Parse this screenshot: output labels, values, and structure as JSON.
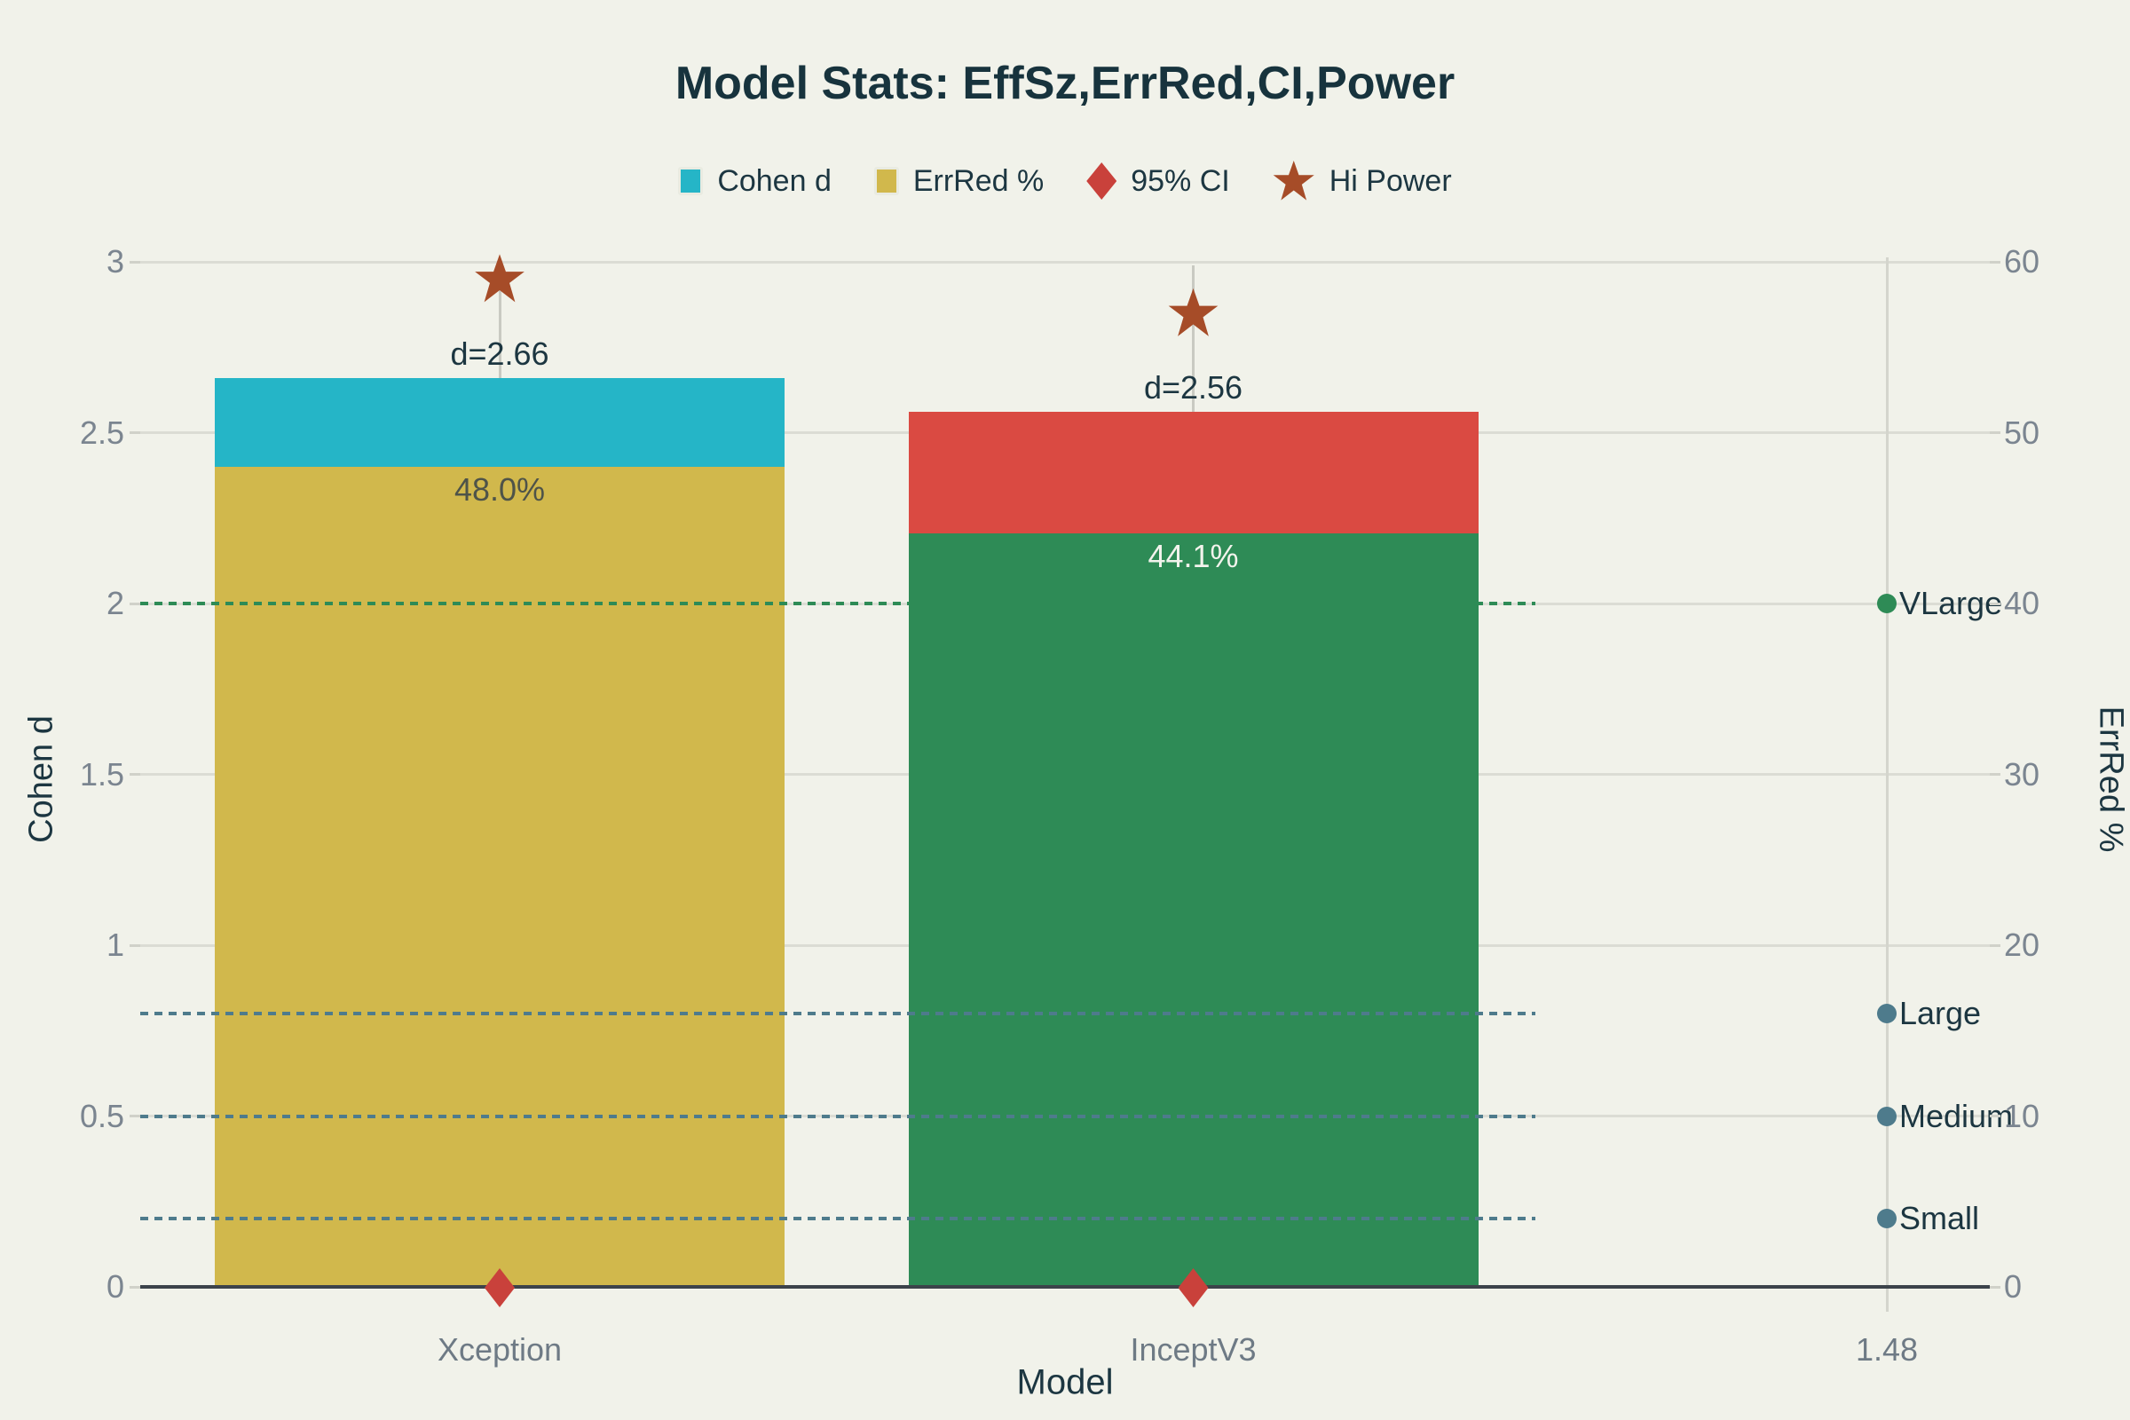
{
  "title": "Model Stats: EffSz,ErrRed,CI,Power",
  "legend": [
    {
      "label": "Cohen d",
      "marker": "square",
      "color": "#25b5c7"
    },
    {
      "label": "ErrRed %",
      "marker": "square",
      "color": "#d1b84c"
    },
    {
      "label": "95% CI",
      "marker": "diamond",
      "color": "#c9413b"
    },
    {
      "label": "Hi Power",
      "marker": "star",
      "color": "#a64c28"
    }
  ],
  "axes": {
    "left": {
      "title": "Cohen d",
      "ticks": [
        {
          "v": 0,
          "label": "0"
        },
        {
          "v": 0.5,
          "label": "0.5"
        },
        {
          "v": 1,
          "label": "1"
        },
        {
          "v": 1.5,
          "label": "1.5"
        },
        {
          "v": 2,
          "label": "2"
        },
        {
          "v": 2.5,
          "label": "2.5"
        },
        {
          "v": 3,
          "label": "3"
        }
      ],
      "range": [
        0,
        3
      ]
    },
    "right": {
      "title": "ErrRed %",
      "ticks": [
        {
          "v": 0,
          "label": "0"
        },
        {
          "v": 10,
          "label": "10"
        },
        {
          "v": 20,
          "label": "20"
        },
        {
          "v": 30,
          "label": "30"
        },
        {
          "v": 40,
          "label": "40"
        },
        {
          "v": 50,
          "label": "50"
        },
        {
          "v": 60,
          "label": "60"
        }
      ],
      "range": [
        0,
        60
      ]
    },
    "x": {
      "title": "Model",
      "categories": [
        "Xception",
        "InceptV3",
        "1.48"
      ]
    }
  },
  "chart_data": {
    "type": "bar",
    "categories": [
      "Xception",
      "InceptV3",
      "1.48"
    ],
    "series": [
      {
        "name": "Cohen d",
        "type": "bar",
        "yaxis": "left",
        "values": [
          2.66,
          2.56,
          null
        ],
        "colors": [
          "#25b5c7",
          "#da4a42"
        ],
        "labels": [
          "d=2.66",
          "d=2.56"
        ],
        "label_color": "#1c3641"
      },
      {
        "name": "ErrRed %",
        "type": "bar-overlay",
        "yaxis": "right",
        "values": [
          48.0,
          44.1,
          null
        ],
        "colors": [
          "#d1b84c",
          "#2e8b56"
        ],
        "labels": [
          "48.0%",
          "44.1%"
        ],
        "label_colors": [
          "#4e5349",
          "#f2f3ec"
        ]
      },
      {
        "name": "95% CI",
        "type": "scatter-diamond",
        "yaxis": "left",
        "values": [
          0,
          0,
          null
        ],
        "color": "#c9413b"
      },
      {
        "name": "Hi Power",
        "type": "scatter-star",
        "yaxis": "left",
        "values": [
          2.95,
          2.85,
          null
        ],
        "color": "#a64c28",
        "whisker_top": 2.99
      }
    ],
    "thresholds": [
      {
        "label": "VLarge",
        "value": 2.0,
        "color": "#2e8b56"
      },
      {
        "label": "Large",
        "value": 0.8,
        "color": "#4e7b8c"
      },
      {
        "label": "Medium",
        "value": 0.5,
        "color": "#4e7b8c"
      },
      {
        "label": "Small",
        "value": 0.2,
        "color": "#4e7b8c"
      }
    ],
    "title": "Model Stats: EffSz,ErrRed,CI,Power",
    "xlabel": "Model",
    "ylabel": "Cohen d",
    "y2label": "ErrRed %",
    "ylim": [
      0,
      3
    ],
    "y2lim": [
      0,
      60
    ],
    "grid": true,
    "legend_position": "top"
  },
  "colors": {
    "background": "#f1f2ea",
    "grid": "#dbdcd4",
    "vgrid": "#d4d5cd",
    "axis_line": "#3c434a",
    "tick_text": "#7b8590",
    "category_text": "#6e7a85",
    "dark_text": "#1c3641",
    "whisker": "#c9cac2"
  }
}
